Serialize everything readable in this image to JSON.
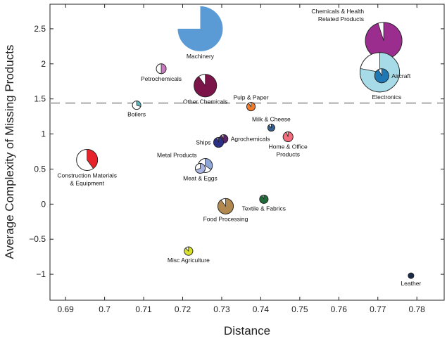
{
  "chart_data": {
    "type": "scatter",
    "title": "",
    "xlabel": "Distance",
    "ylabel": "Average Complexity of Missing Products",
    "xlim": [
      0.686,
      0.787
    ],
    "ylim": [
      -1.37,
      2.85
    ],
    "x_ticks": [
      0.69,
      0.7,
      0.71,
      0.72,
      0.73,
      0.74,
      0.75,
      0.76,
      0.77,
      0.78
    ],
    "x_tick_labels": [
      "0.69",
      "0.7",
      "0.71",
      "0.72",
      "0.73",
      "0.74",
      "0.75",
      "0.76",
      "0.77",
      "0.78"
    ],
    "y_ticks": [
      -1,
      -0.5,
      0,
      0.5,
      1,
      1.5,
      2,
      2.5
    ],
    "y_tick_labels": [
      "−1",
      "−0.5",
      "0",
      "0.5",
      "1",
      "1.5",
      "2",
      "2.5"
    ],
    "reference_line": {
      "y": 1.44,
      "style": "dashed",
      "color": "#aaaaaa"
    },
    "marker": "pie",
    "series": [
      {
        "label": "Machinery",
        "x": 0.7245,
        "y": 2.5,
        "size": 32,
        "share": 0.75,
        "color": "#5b9bd5",
        "label_lines": [
          "Machinery"
        ],
        "label_pos": "below"
      },
      {
        "label": "Chemicals & Health Related Products",
        "x": 0.7715,
        "y": 2.33,
        "size": 26,
        "share": 0.95,
        "color": "#9b2d8f",
        "label_lines": [
          "Chemicals & Health",
          "Related Products"
        ],
        "label_pos": "upper-left"
      },
      {
        "label": "Electronics",
        "x": 0.7705,
        "y": 1.88,
        "size": 28,
        "share": 0.78,
        "color": "#a8dbe8",
        "label_lines": [
          "Electronics"
        ],
        "label_pos": "below-right"
      },
      {
        "label": "Aircraft",
        "x": 0.771,
        "y": 1.83,
        "size": 10,
        "share": 0.92,
        "color": "#1f78b4",
        "label_lines": [
          "Aircraft"
        ],
        "label_pos": "right"
      },
      {
        "label": "Other Chemicals",
        "x": 0.7258,
        "y": 1.69,
        "size": 16,
        "share": 0.9,
        "color": "#7b1448",
        "label_lines": [
          "Other Chemicals"
        ],
        "label_pos": "below"
      },
      {
        "label": "Petrochemicals",
        "x": 0.7145,
        "y": 1.93,
        "size": 7,
        "share": 0.5,
        "color": "#c97bbf",
        "label_lines": [
          "Petrochemicals"
        ],
        "label_pos": "below"
      },
      {
        "label": "Boilers",
        "x": 0.7082,
        "y": 1.41,
        "size": 6,
        "share": 0.3,
        "color": "#5fb7bf",
        "label_lines": [
          "Boilers"
        ],
        "label_pos": "below"
      },
      {
        "label": "Pulp & Paper",
        "x": 0.7375,
        "y": 1.39,
        "size": 6,
        "share": 0.9,
        "color": "#f27a2b",
        "label_lines": [
          "Pulp & Paper"
        ],
        "label_pos": "above"
      },
      {
        "label": "Milk & Cheese",
        "x": 0.7427,
        "y": 1.09,
        "size": 5,
        "share": 0.88,
        "color": "#355f8c",
        "label_lines": [
          "Milk & Cheese"
        ],
        "label_pos": "above"
      },
      {
        "label": "Home & Office Products",
        "x": 0.747,
        "y": 0.96,
        "size": 7,
        "share": 0.94,
        "color": "#f26d7d",
        "label_lines": [
          "Home & Office",
          "Products"
        ],
        "label_pos": "below"
      },
      {
        "label": "Agrochemicals",
        "x": 0.7305,
        "y": 0.93,
        "size": 6,
        "share": 0.92,
        "color": "#5a2466",
        "label_lines": [
          "Agrochemicals"
        ],
        "label_pos": "right"
      },
      {
        "label": "Ships",
        "x": 0.7292,
        "y": 0.88,
        "size": 7,
        "share": 0.95,
        "color": "#2c2f86",
        "label_lines": [
          "Ships"
        ],
        "label_pos": "left"
      },
      {
        "label": "Construction Materials & Equipment",
        "x": 0.6955,
        "y": 0.63,
        "size": 15,
        "share": 0.4,
        "color": "#e8222a",
        "label_lines": [
          "Construction Materials",
          "& Equipment"
        ],
        "label_pos": "below"
      },
      {
        "label": "Metal Products",
        "x": 0.7258,
        "y": 0.55,
        "size": 10,
        "share": 0.35,
        "color": "#8fa6d8",
        "label_lines": [
          "Metal Products"
        ],
        "label_pos": "upper-left"
      },
      {
        "label": "Meat & Eggs",
        "x": 0.7245,
        "y": 0.51,
        "size": 7,
        "share": 0.7,
        "color": "#a7b4e0",
        "label_lines": [
          "Meat & Eggs"
        ],
        "label_pos": "below"
      },
      {
        "label": "Textile & Fabrics",
        "x": 0.7408,
        "y": 0.07,
        "size": 6,
        "share": 0.93,
        "color": "#1f6b3a",
        "label_lines": [
          "Textile & Fabrics"
        ],
        "label_pos": "below"
      },
      {
        "label": "Food Processing",
        "x": 0.731,
        "y": -0.03,
        "size": 11,
        "share": 0.9,
        "color": "#b08850",
        "label_lines": [
          "Food Processing"
        ],
        "label_pos": "below"
      },
      {
        "label": "Misc Agriculture",
        "x": 0.7215,
        "y": -0.67,
        "size": 6,
        "share": 0.88,
        "color": "#d8df2c",
        "label_lines": [
          "Misc Agriculture"
        ],
        "label_pos": "below"
      },
      {
        "label": "Leather",
        "x": 0.7785,
        "y": -1.02,
        "size": 4,
        "share": 1.0,
        "color": "#1a2a4a",
        "label_lines": [
          "Leather"
        ],
        "label_pos": "below"
      }
    ]
  }
}
